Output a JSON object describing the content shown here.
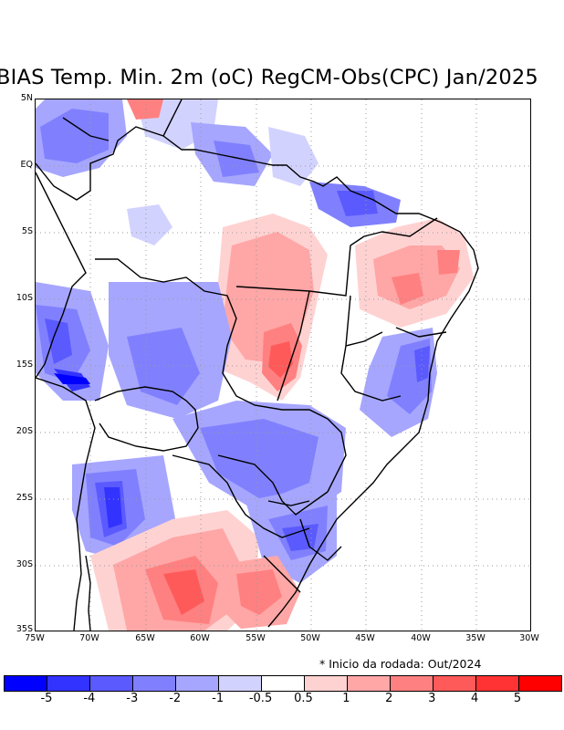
{
  "title": "BIAS Temp. Min. 2m (oC) RegCM-Obs(CPC) Jan/2025",
  "note": "* Inicio da rodada: Out/2024",
  "latitude_labels": [
    "5N",
    "EQ",
    "5S",
    "10S",
    "15S",
    "20S",
    "25S",
    "30S",
    "35S"
  ],
  "longitude_labels": [
    "75W",
    "70W",
    "65W",
    "60W",
    "55W",
    "50W",
    "45W",
    "40W",
    "35W",
    "30W"
  ],
  "colorbar": {
    "colors": [
      "#0000ff",
      "#3333ff",
      "#5a5aff",
      "#8080ff",
      "#a6a6ff",
      "#d2d2ff",
      "#ffffff",
      "#ffd2d2",
      "#ffa6a6",
      "#ff8080",
      "#ff5a5a",
      "#ff3333",
      "#ff0000"
    ],
    "tick_labels": [
      "-5",
      "-4",
      "-3",
      "-2",
      "-1",
      "-0.5",
      "0.5",
      "1",
      "2",
      "3",
      "4",
      "5"
    ]
  }
}
